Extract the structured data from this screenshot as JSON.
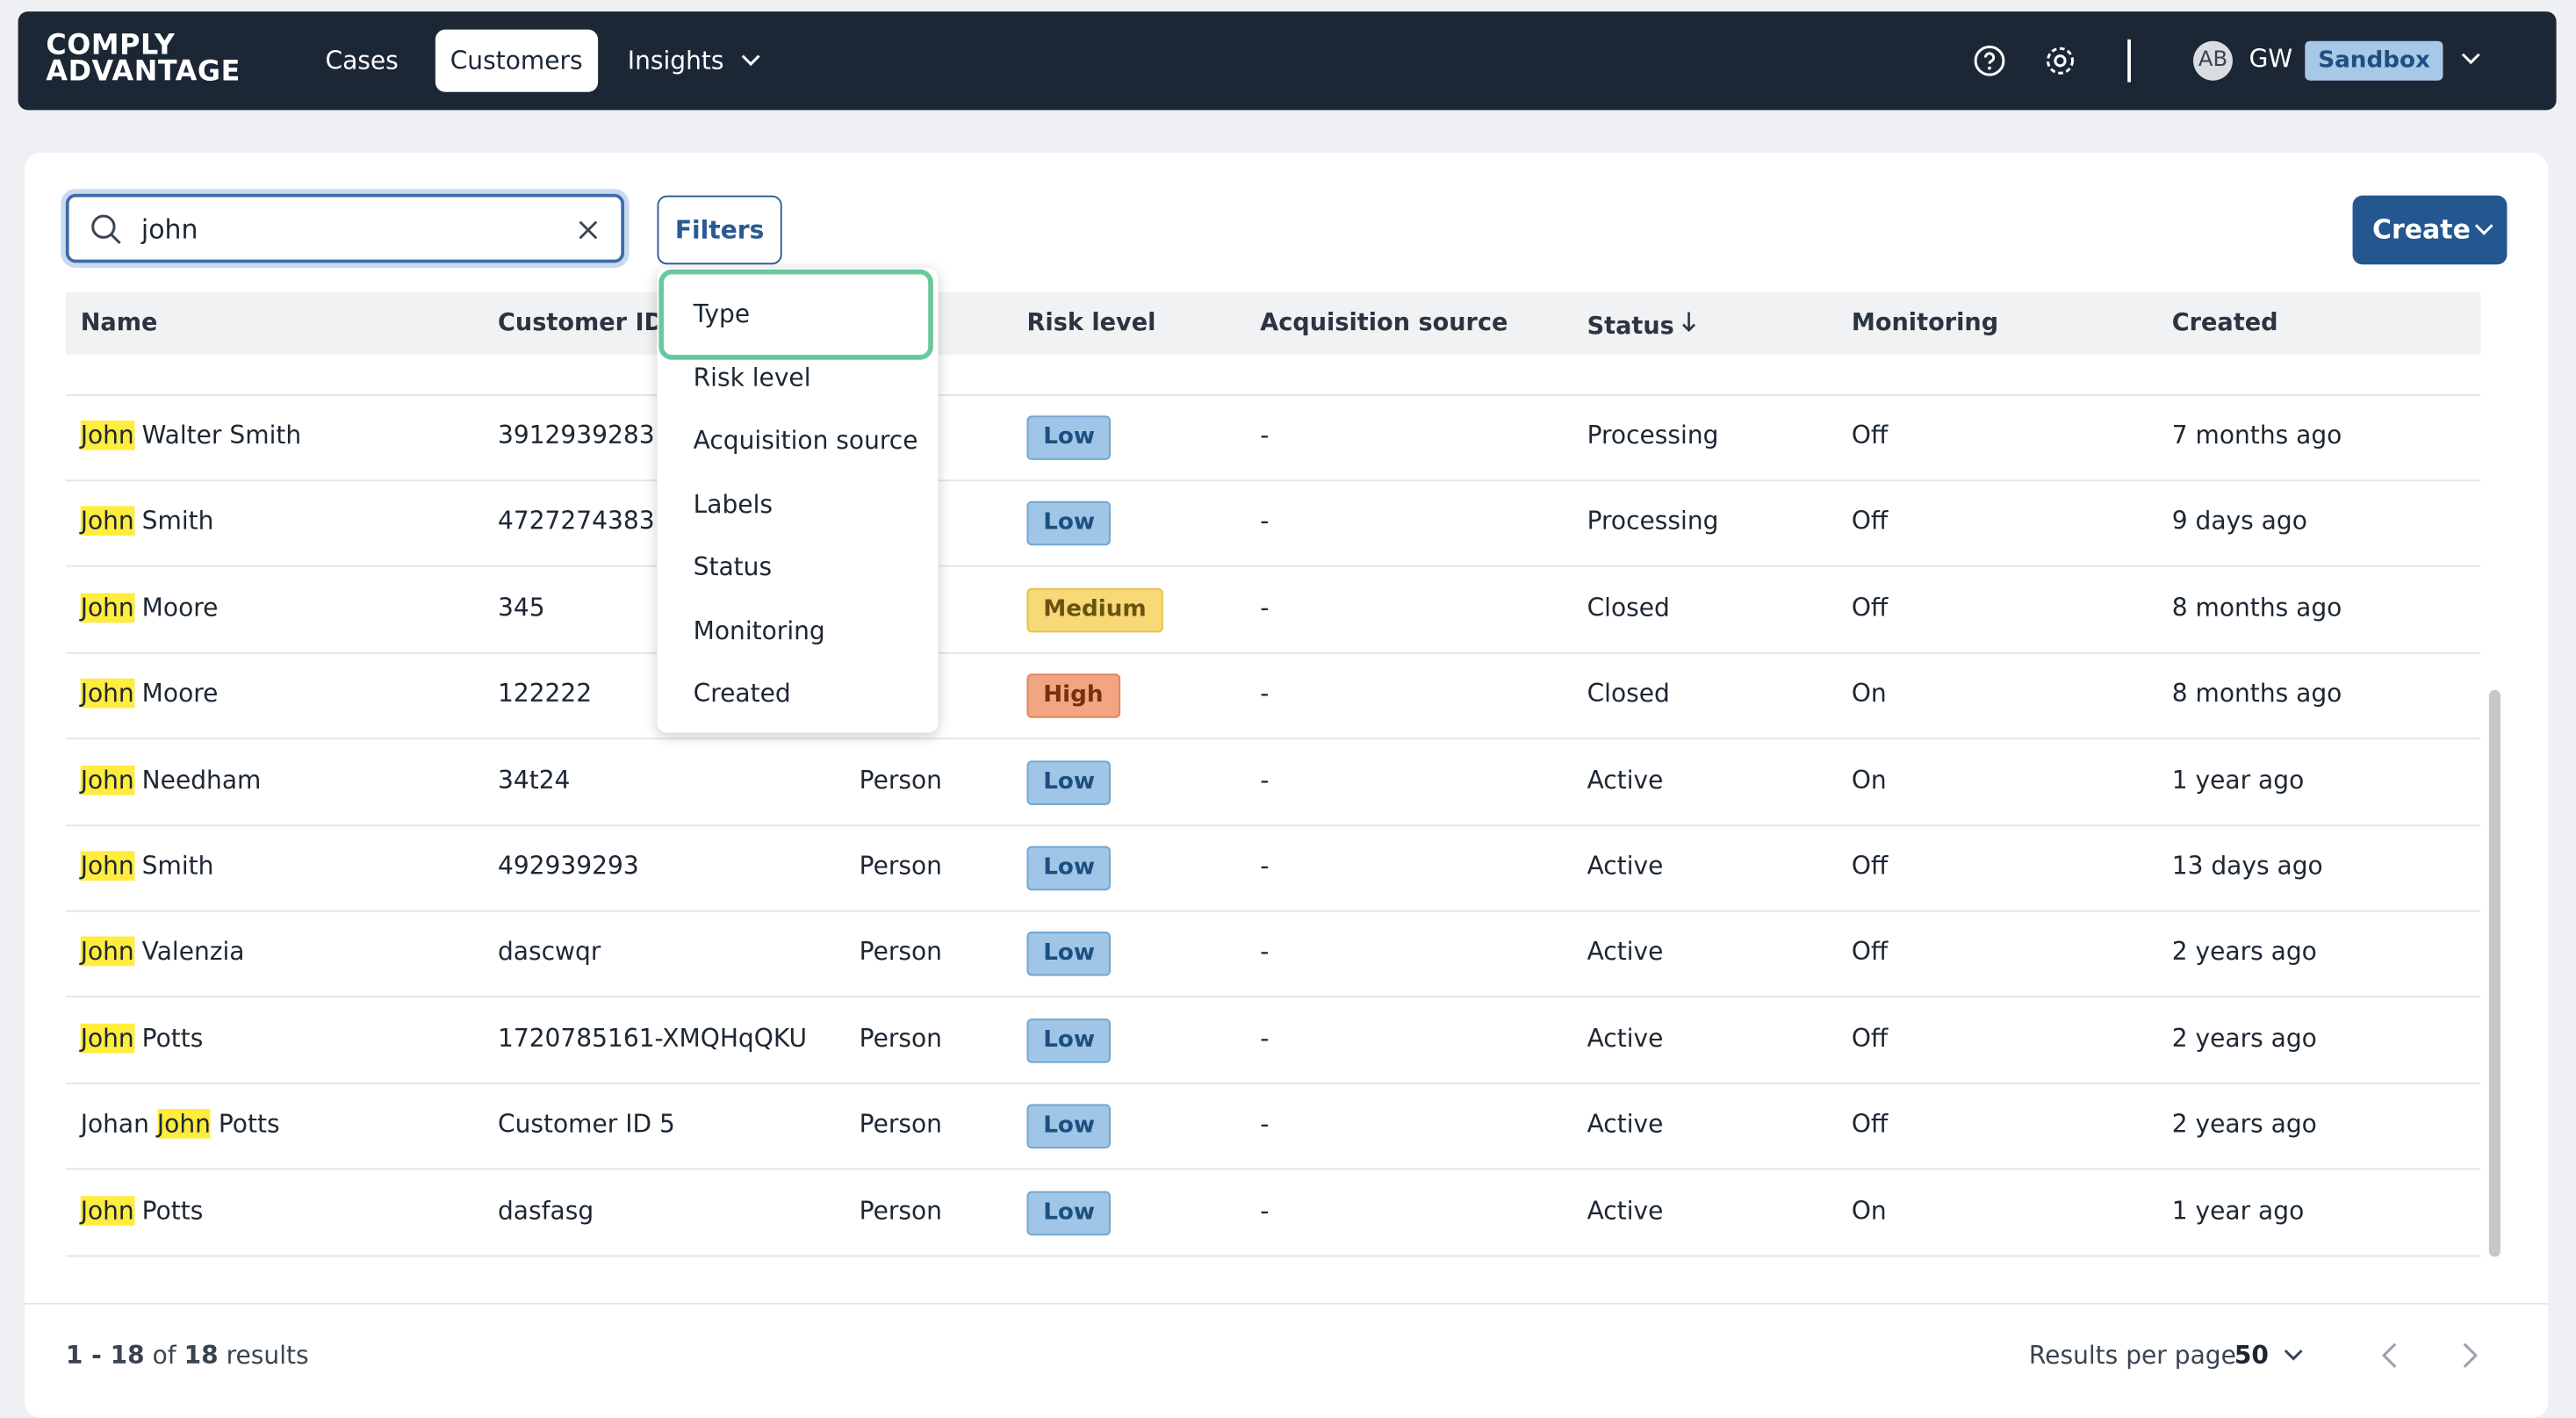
{
  "nav": {
    "logo_line1": "COMPLY",
    "logo_line2": "ADVANTAGE",
    "items": [
      "Cases",
      "Customers",
      "Insights"
    ],
    "active": "Customers",
    "avatar": "AB",
    "user": "GW",
    "env": "Sandbox"
  },
  "search": {
    "query": "john"
  },
  "filters": {
    "button": "Filters",
    "options": [
      "Type",
      "Risk level",
      "Acquisition source",
      "Labels",
      "Status",
      "Monitoring",
      "Created"
    ],
    "selected": "Type"
  },
  "create": "Create",
  "table": {
    "columns": [
      "Name",
      "Customer ID",
      null,
      "Risk level",
      "Acquisition source",
      "Status",
      "Monitoring",
      "Created"
    ],
    "rows": [
      [
        [
          "John",
          "Walter",
          "Smith"
        ],
        "3912939283",
        null,
        "Low",
        "-",
        "Processing",
        "Off",
        "7 months ago"
      ],
      [
        [
          "John",
          "Smith"
        ],
        "4727274383",
        null,
        "Low",
        "-",
        "Processing",
        "Off",
        "9 days ago"
      ],
      [
        [
          "John",
          "Moore"
        ],
        "345",
        null,
        "Medium",
        "-",
        "Closed",
        "Off",
        "8 months ago"
      ],
      [
        [
          "John",
          "Moore"
        ],
        "122222",
        null,
        "High",
        "-",
        "Closed",
        "On",
        "8 months ago"
      ],
      [
        [
          "John",
          "Needham"
        ],
        "34t24",
        "Person",
        "Low",
        "-",
        "Active",
        "On",
        "1 year ago"
      ],
      [
        [
          "John",
          "Smith"
        ],
        "492939293",
        "Person",
        "Low",
        "-",
        "Active",
        "Off",
        "13 days ago"
      ],
      [
        [
          "John",
          "Valenzia"
        ],
        "dascwqr",
        "Person",
        "Low",
        "-",
        "Active",
        "Off",
        "2 years ago"
      ],
      [
        [
          "John",
          "Potts"
        ],
        "1720785161-XMQHqQKU",
        "Person",
        "Low",
        "-",
        "Active",
        "Off",
        "2 years ago"
      ],
      [
        [
          "Johan",
          "John",
          "Potts"
        ],
        "Customer ID 5",
        "Person",
        "Low",
        "-",
        "Active",
        "Off",
        "2 years ago"
      ],
      [
        [
          "John",
          "Potts"
        ],
        "dasfasg",
        "Person",
        "Low",
        "-",
        "Active",
        "On",
        "1 year ago"
      ]
    ]
  },
  "footer": {
    "range": "1 - 18",
    "of": "of",
    "total": "18",
    "results": "results",
    "per_page_label": "Results per page",
    "per_page": 50
  }
}
